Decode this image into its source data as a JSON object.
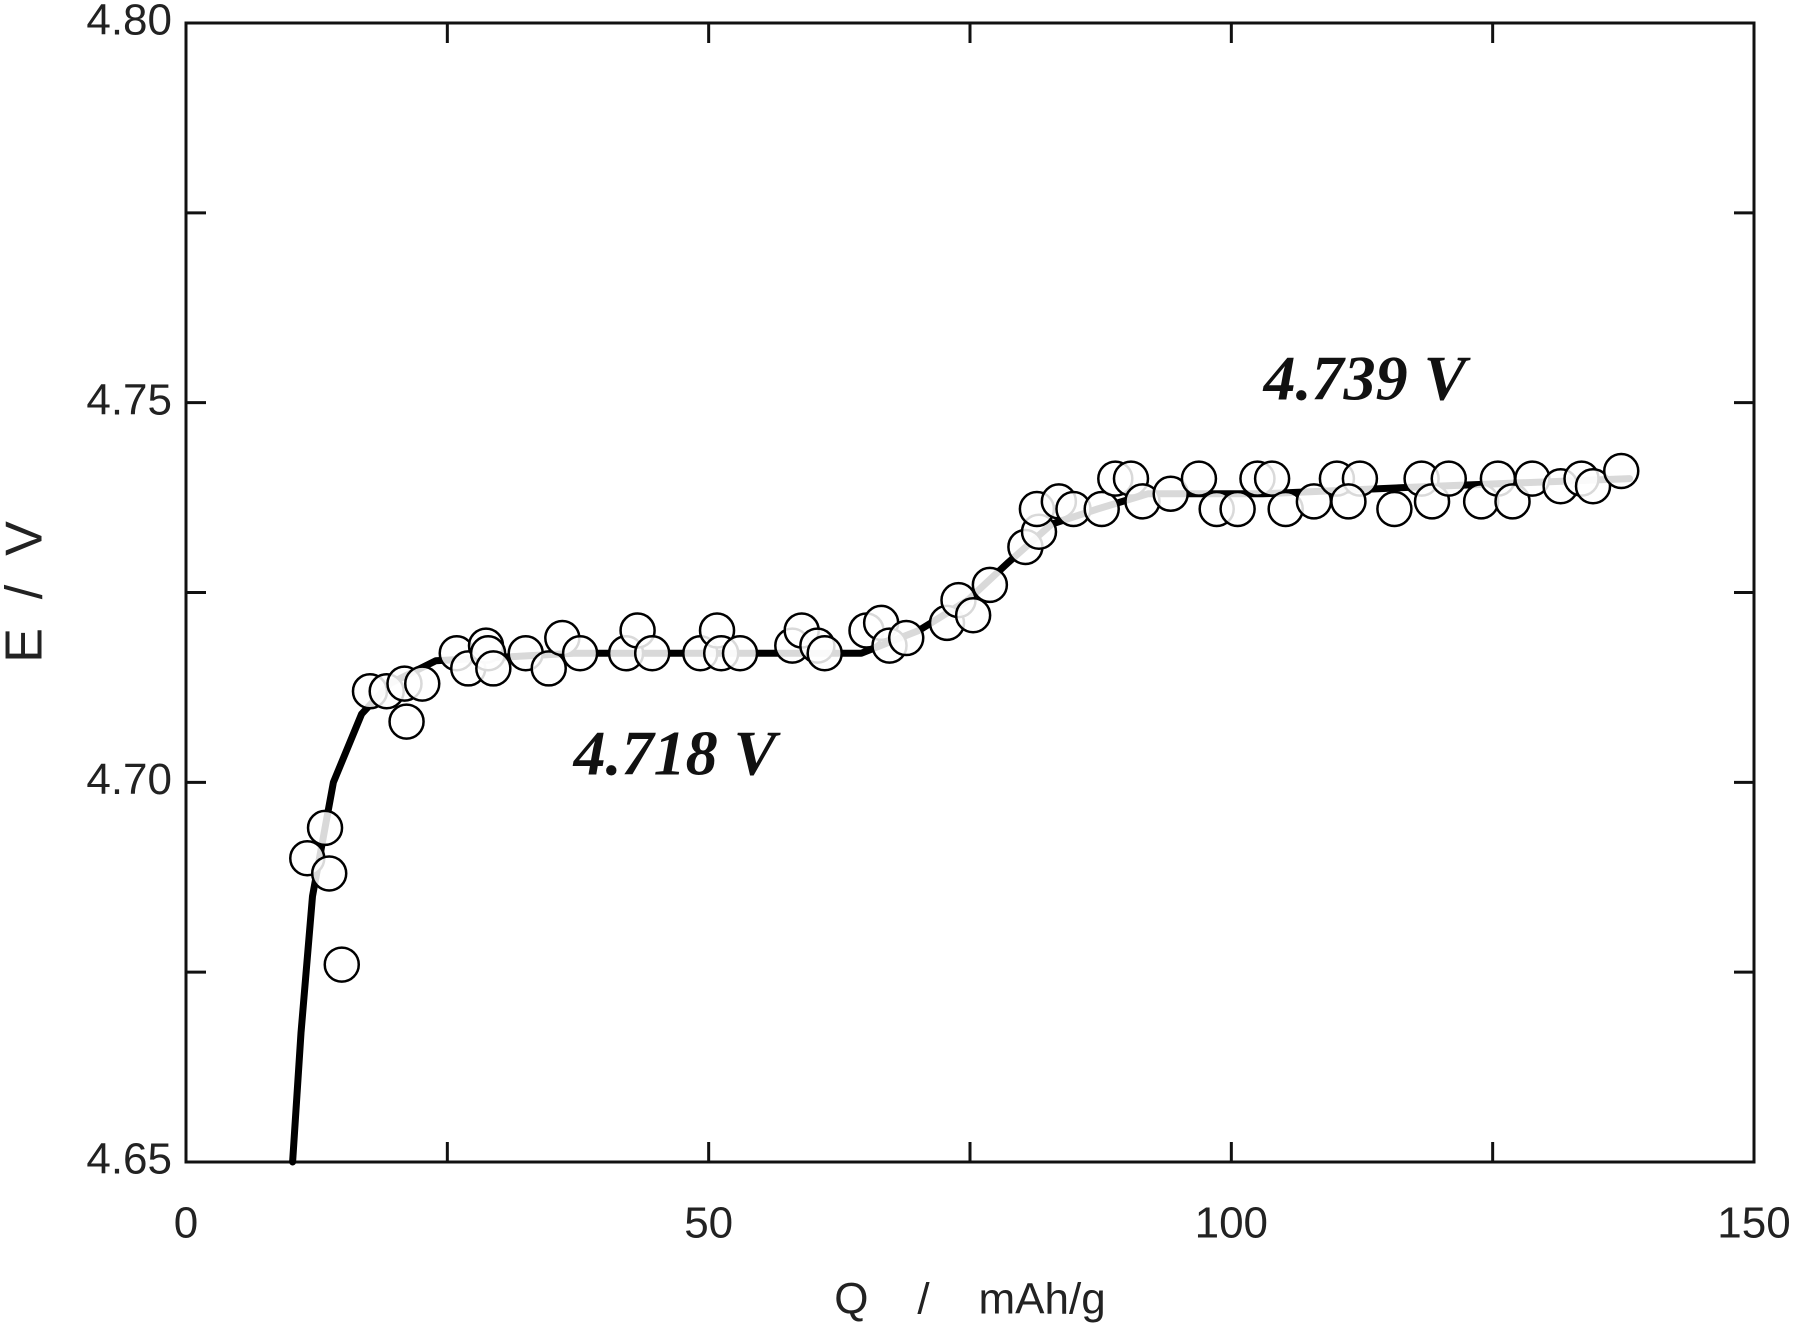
{
  "chart_data": {
    "type": "scatter",
    "xlabel": "Q    /    mAh/g",
    "ylabel": "E  /  V",
    "xlim": [
      0,
      150
    ],
    "ylim": [
      4.65,
      4.8
    ],
    "xticks": [
      0,
      50,
      100,
      150
    ],
    "yticks": [
      4.65,
      {
        "value": 4.7,
        "label": "4.70"
      },
      4.75,
      {
        "value": 4.8,
        "label": "4.80"
      }
    ],
    "xminor": [
      25,
      75,
      125
    ],
    "yminor": [
      4.675,
      4.725,
      4.775
    ],
    "series": [
      {
        "mode": "line",
        "color": "#000000",
        "x": [
          10.2,
          11.0,
          12.1,
          14.1,
          16.8,
          19.5,
          23.9,
          37.1,
          53.6,
          64.6,
          70.1,
          74.8,
          78.7,
          82.8,
          87.2,
          92.0,
          103.0,
          119.5,
          138.1
        ],
        "y": [
          4.65,
          4.667,
          4.685,
          4.7,
          4.709,
          4.713,
          4.716,
          4.717,
          4.717,
          4.717,
          4.72,
          4.724,
          4.729,
          4.734,
          4.736,
          4.738,
          4.738,
          4.739,
          4.74
        ]
      },
      {
        "mode": "markers",
        "color": "#000000",
        "x": [
          11.6,
          13.3,
          13.7,
          14.9,
          17.6,
          19.2,
          20.9,
          21.1,
          22.6,
          25.9,
          27.0,
          28.7,
          28.9,
          29.4,
          32.5,
          34.7,
          36.0,
          37.7,
          42.1,
          43.2,
          44.6,
          49.2,
          50.8,
          51.2,
          53.0,
          58.0,
          58.9,
          60.4,
          61.1,
          65.1,
          66.5,
          67.3,
          68.9,
          72.8,
          73.9,
          75.3,
          76.9,
          80.3,
          81.6,
          81.4,
          83.5,
          84.9,
          87.6,
          88.9,
          90.4,
          91.5,
          94.2,
          96.9,
          98.6,
          100.6,
          102.5,
          103.9,
          105.2,
          107.9,
          110.1,
          112.3,
          111.2,
          115.6,
          118.2,
          119.2,
          120.8,
          123.9,
          125.5,
          126.9,
          128.8,
          131.5,
          133.5,
          134.6,
          137.3
        ],
        "y": [
          4.69,
          4.694,
          4.688,
          4.676,
          4.712,
          4.712,
          4.713,
          4.708,
          4.713,
          4.717,
          4.715,
          4.718,
          4.717,
          4.715,
          4.717,
          4.715,
          4.719,
          4.717,
          4.717,
          4.72,
          4.717,
          4.717,
          4.72,
          4.717,
          4.717,
          4.718,
          4.72,
          4.718,
          4.717,
          4.72,
          4.721,
          4.718,
          4.719,
          4.721,
          4.724,
          4.722,
          4.726,
          4.731,
          4.733,
          4.736,
          4.737,
          4.736,
          4.736,
          4.74,
          4.74,
          4.737,
          4.738,
          4.74,
          4.736,
          4.736,
          4.74,
          4.74,
          4.736,
          4.737,
          4.74,
          4.74,
          4.737,
          4.736,
          4.74,
          4.737,
          4.74,
          4.737,
          4.74,
          4.737,
          4.74,
          4.739,
          4.74,
          4.739,
          4.741
        ]
      }
    ],
    "annotations": [
      "4.739 V",
      "4.718 V"
    ]
  }
}
